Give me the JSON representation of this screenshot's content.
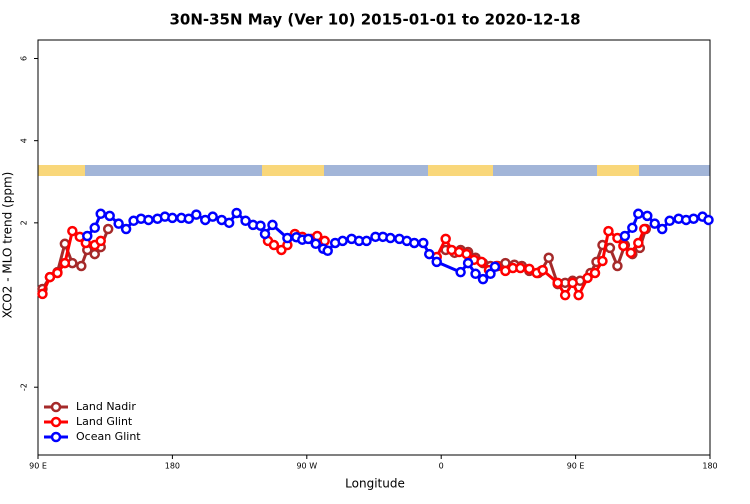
{
  "chart_data": {
    "type": "line",
    "title": "30N-35N May (Ver 10)   2015-01-01 to 2020-12-18",
    "x_label": "Longitude",
    "y_label": "XCO2 - MLO trend (ppm)",
    "xlim": [
      90,
      540
    ],
    "xticks": [
      {
        "value": 90,
        "label": "90 E"
      },
      180,
      {
        "value": 270,
        "label": "90 W"
      },
      {
        "value": 360,
        "label": "0"
      },
      {
        "value": 450,
        "label": "90 E"
      },
      {
        "value": 540,
        "label": "180"
      }
    ],
    "ylim": [
      -3.65,
      6.45
    ],
    "yticks": [
      -2,
      2,
      4,
      6
    ],
    "legend": "bottom-left",
    "series": [
      {
        "name": "Land Nadir",
        "color": "#a52a2a",
        "x": [
          93,
          98,
          103,
          108,
          113,
          119,
          123,
          128,
          132,
          137,
          250,
          363,
          369,
          373,
          378,
          383,
          388,
          393,
          398,
          403,
          409,
          414,
          419,
          425,
          427,
          432,
          438,
          443,
          448,
          453,
          460,
          464,
          468,
          473,
          478,
          483,
          488,
          493,
          497
        ],
        "values": [
          0.39,
          0.68,
          0.8,
          1.49,
          1.02,
          0.95,
          1.34,
          1.24,
          1.41,
          1.85,
          null,
          1.34,
          1.27,
          1.34,
          1.29,
          1.15,
          1.02,
          0.95,
          0.95,
          1.02,
          0.98,
          0.95,
          0.83,
          0.78,
          0.83,
          1.15,
          0.51,
          0.54,
          0.59,
          0.59,
          0.78,
          1.05,
          1.46,
          1.39,
          0.95,
          1.46,
          1.24,
          1.39,
          1.85
        ]
      },
      {
        "name": "Land Glint",
        "color": "#ff0000",
        "x": [
          93,
          98,
          103,
          108,
          113,
          118,
          122,
          128,
          132,
          200,
          244,
          248,
          253,
          257,
          262,
          267,
          273,
          277,
          282,
          320,
          357,
          363,
          367,
          372,
          377,
          382,
          387,
          392,
          397,
          403,
          408,
          413,
          419,
          424,
          428,
          438,
          443,
          448,
          452,
          458,
          463,
          468,
          472,
          478,
          482,
          487,
          492,
          496
        ],
        "values": [
          0.27,
          0.68,
          0.78,
          1.02,
          1.8,
          1.66,
          1.51,
          1.46,
          1.56,
          null,
          1.56,
          1.46,
          1.34,
          1.46,
          1.73,
          1.66,
          1.61,
          1.68,
          1.56,
          null,
          1.17,
          1.61,
          1.34,
          1.29,
          1.24,
          1.1,
          1.05,
          0.85,
          0.95,
          0.83,
          0.9,
          0.9,
          0.88,
          0.78,
          0.85,
          0.54,
          0.24,
          0.54,
          0.24,
          0.66,
          0.78,
          1.07,
          1.8,
          1.63,
          1.44,
          1.27,
          1.51,
          1.85
        ]
      },
      {
        "name": "Ocean Glint",
        "color": "#0000ff",
        "x": [
          123,
          128,
          132,
          138,
          144,
          149,
          154,
          159,
          164,
          170,
          175,
          180,
          186,
          191,
          196,
          202,
          207,
          213,
          218,
          223,
          229,
          234,
          239,
          242,
          247,
          257,
          263,
          267,
          271,
          276,
          281,
          284,
          289,
          294,
          300,
          305,
          310,
          316,
          321,
          326,
          332,
          337,
          342,
          348,
          352,
          357,
          373,
          378,
          383,
          388,
          393,
          396,
          440,
          483,
          488,
          492,
          498,
          503,
          508,
          513,
          519,
          524,
          529,
          535,
          539
        ],
        "values": [
          1.68,
          1.88,
          2.22,
          2.17,
          1.98,
          1.85,
          2.05,
          2.1,
          2.07,
          2.1,
          2.15,
          2.12,
          2.12,
          2.1,
          2.2,
          2.07,
          2.15,
          2.07,
          2.0,
          2.24,
          2.05,
          1.95,
          1.93,
          1.73,
          1.95,
          1.63,
          1.65,
          1.59,
          1.61,
          1.49,
          1.37,
          1.32,
          1.51,
          1.56,
          1.61,
          1.56,
          1.56,
          1.66,
          1.66,
          1.63,
          1.61,
          1.56,
          1.51,
          1.51,
          1.24,
          1.05,
          0.8,
          1.02,
          0.76,
          0.63,
          0.76,
          0.93,
          null,
          1.68,
          1.88,
          2.22,
          2.17,
          1.98,
          1.85,
          2.05,
          2.1,
          2.07,
          2.1,
          2.15,
          2.07
        ]
      }
    ]
  }
}
